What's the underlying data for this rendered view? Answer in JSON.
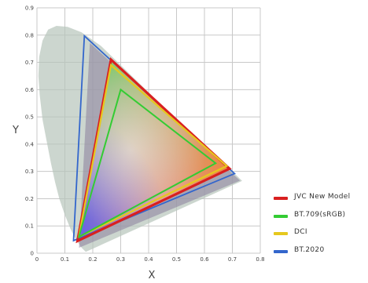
{
  "chart_data": {
    "type": "line",
    "xlabel": "X",
    "ylabel": "Y",
    "xlim": [
      0,
      0.8
    ],
    "ylim": [
      0,
      0.9
    ],
    "xticks": [
      "0",
      "0.1",
      "0.2",
      "0.3",
      "0.4",
      "0.5",
      "0.6",
      "0.7",
      "0.8"
    ],
    "yticks": [
      "0",
      "0.1",
      "0.2",
      "0.3",
      "0.4",
      "0.5",
      "0.6",
      "0.7",
      "0.8",
      "0.9"
    ],
    "grid": true,
    "legend_position": "right",
    "spectral_locus": [
      [
        0.175,
        0.005
      ],
      [
        0.17,
        0.01
      ],
      [
        0.16,
        0.02
      ],
      [
        0.14,
        0.05
      ],
      [
        0.12,
        0.09
      ],
      [
        0.1,
        0.14
      ],
      [
        0.08,
        0.2
      ],
      [
        0.065,
        0.26
      ],
      [
        0.05,
        0.33
      ],
      [
        0.035,
        0.41
      ],
      [
        0.02,
        0.49
      ],
      [
        0.01,
        0.58
      ],
      [
        0.005,
        0.65
      ],
      [
        0.008,
        0.72
      ],
      [
        0.02,
        0.78
      ],
      [
        0.04,
        0.82
      ],
      [
        0.07,
        0.834
      ],
      [
        0.11,
        0.83
      ],
      [
        0.16,
        0.81
      ],
      [
        0.23,
        0.76
      ],
      [
        0.3,
        0.69
      ],
      [
        0.37,
        0.62
      ],
      [
        0.44,
        0.55
      ],
      [
        0.51,
        0.48
      ],
      [
        0.58,
        0.41
      ],
      [
        0.65,
        0.35
      ],
      [
        0.735,
        0.265
      ]
    ],
    "series": [
      {
        "name": "BT.2020",
        "color": "#3366cc",
        "points": [
          [
            0.17,
            0.797
          ],
          [
            0.708,
            0.292
          ],
          [
            0.131,
            0.046
          ]
        ]
      },
      {
        "name": "JVC New Model",
        "color": "#d92020",
        "points": [
          [
            0.265,
            0.71
          ],
          [
            0.69,
            0.31
          ],
          [
            0.145,
            0.045
          ]
        ]
      },
      {
        "name": "DCI",
        "color": "#e6c81e",
        "points": [
          [
            0.265,
            0.69
          ],
          [
            0.68,
            0.32
          ],
          [
            0.15,
            0.06
          ]
        ]
      },
      {
        "name": "BT.709(sRGB)",
        "color": "#33cc33",
        "points": [
          [
            0.3,
            0.6
          ],
          [
            0.64,
            0.33
          ],
          [
            0.15,
            0.06
          ]
        ]
      }
    ]
  },
  "legend": [
    {
      "name": "JVC New Model",
      "color": "#d92020"
    },
    {
      "name": "BT.709(sRGB)",
      "color": "#33cc33"
    },
    {
      "name": "DCI",
      "color": "#e6c81e"
    },
    {
      "name": "BT.2020",
      "color": "#3366cc"
    }
  ]
}
